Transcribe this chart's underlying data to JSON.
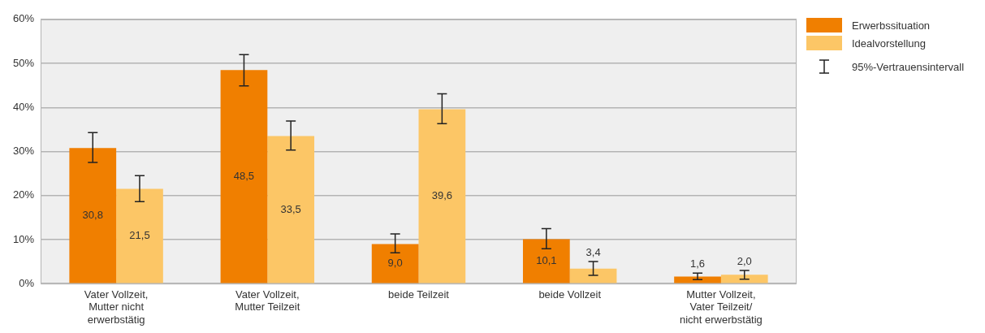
{
  "chart_data": {
    "type": "bar",
    "categories": [
      "Vater Vollzeit, Mutter nicht erwerbstätig",
      "Vater Vollzeit, Mutter Teilzeit",
      "beide Teilzeit",
      "beide Vollzeit",
      "Mutter Vollzeit, Vater Teilzeit/ nicht erwerbstätig"
    ],
    "series": [
      {
        "name": "Erwerbssituation",
        "color": "#f07f00",
        "values": [
          30.8,
          48.5,
          9.0,
          10.1,
          1.6
        ],
        "value_labels": [
          "30,8",
          "48,5",
          "9,0",
          "10,1",
          "1,6"
        ],
        "errors": [
          [
            27.5,
            34.3
          ],
          [
            44.9,
            52.0
          ],
          [
            7.0,
            11.3
          ],
          [
            7.9,
            12.5
          ],
          [
            0.9,
            2.4
          ]
        ]
      },
      {
        "name": "Idealvorstellung",
        "color": "#fcc666",
        "values": [
          21.5,
          33.5,
          39.6,
          3.4,
          2.0
        ],
        "value_labels": [
          "21,5",
          "33,5",
          "39,6",
          "3,4",
          "2,0"
        ],
        "errors": [
          [
            18.6,
            24.5
          ],
          [
            30.3,
            36.9
          ],
          [
            36.3,
            43.1
          ],
          [
            1.9,
            5.0
          ],
          [
            1.0,
            3.0
          ]
        ]
      }
    ],
    "ylim": [
      0,
      60
    ],
    "yticks": [
      {
        "value": 0,
        "label": "0%"
      },
      {
        "value": 10,
        "label": "10%"
      },
      {
        "value": 20,
        "label": "20%"
      },
      {
        "value": 30,
        "label": "30%"
      },
      {
        "value": 40,
        "label": "40%"
      },
      {
        "value": 50,
        "label": "50%"
      },
      {
        "value": 60,
        "label": "60%"
      }
    ],
    "grid": "y",
    "legend": "top right",
    "annotations": [
      "95%-Vertrauensintervall"
    ]
  }
}
